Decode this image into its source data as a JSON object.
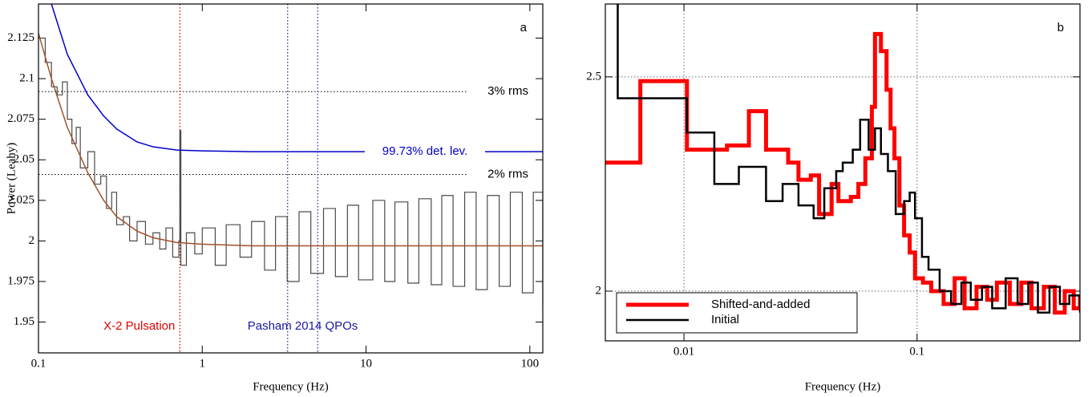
{
  "chart_data": [
    {
      "type": "line",
      "panel_label": "a",
      "xlabel": "Frequency (Hz)",
      "ylabel": "Power (Leahy)",
      "xscale": "log",
      "xlim": [
        0.1,
        120
      ],
      "ylim": [
        1.931,
        2.146
      ],
      "xticks": [
        0.1,
        1,
        10,
        100
      ],
      "yticks": [
        1.95,
        1.975,
        2,
        2.025,
        2.05,
        2.075,
        2.1,
        2.125
      ],
      "series": [
        {
          "color": "#4a4a4a",
          "width": 1.2,
          "drawstyle": "steps",
          "x": [
            0.1,
            0.11,
            0.12,
            0.13,
            0.14,
            0.15,
            0.16,
            0.17,
            0.18,
            0.2,
            0.22,
            0.24,
            0.26,
            0.28,
            0.3,
            0.33,
            0.36,
            0.4,
            0.45,
            0.5,
            0.55,
            0.6,
            0.66,
            0.72,
            0.73,
            0.74,
            0.8,
            0.9,
            1.0,
            1.2,
            1.4,
            1.7,
            2,
            2.4,
            2.8,
            3.3,
            3.9,
            4.6,
            5.5,
            6.5,
            7.7,
            9,
            11,
            13,
            15,
            18,
            21,
            25,
            29,
            34,
            40,
            47,
            55,
            65,
            76,
            90,
            105,
            120
          ],
          "values": [
            2.125,
            2.11,
            2.095,
            2.09,
            2.098,
            2.075,
            2.06,
            2.07,
            2.045,
            2.055,
            2.035,
            2.04,
            2.02,
            2.03,
            2.01,
            2.015,
            2.0,
            2.012,
            1.998,
            2.005,
            1.995,
            2.008,
            1.99,
            2.0,
            2.068,
            1.985,
            2.005,
            1.992,
            2.008,
            1.985,
            2.01,
            1.99,
            2.012,
            1.982,
            2.015,
            1.975,
            2.018,
            1.98,
            2.02,
            1.978,
            2.022,
            1.976,
            2.025,
            1.975,
            2.024,
            1.974,
            2.026,
            1.973,
            2.028,
            1.972,
            2.03,
            1.97,
            2.028,
            1.972,
            2.03,
            1.968,
            2.03,
            1.96
          ]
        },
        {
          "color": "#a0522d",
          "width": 1.5,
          "x": [
            0.1,
            0.12,
            0.15,
            0.2,
            0.25,
            0.3,
            0.4,
            0.5,
            0.7,
            1,
            2,
            5,
            20,
            120
          ],
          "values": [
            2.128,
            2.1,
            2.07,
            2.042,
            2.025,
            2.015,
            2.006,
            2.002,
            1.999,
            1.998,
            1.997,
            1.997,
            1.997,
            1.997
          ]
        },
        {
          "name": "99.73% det. lev.",
          "color": "#0000cc",
          "width": 1.5,
          "x": [
            0.12,
            0.15,
            0.2,
            0.25,
            0.3,
            0.4,
            0.5,
            0.7,
            1,
            2,
            5,
            20,
            120
          ],
          "values": [
            2.146,
            2.115,
            2.09,
            2.077,
            2.069,
            2.061,
            2.058,
            2.056,
            2.0555,
            2.055,
            2.055,
            2.055,
            2.055
          ]
        }
      ],
      "hlines": [
        {
          "value": 2.092,
          "label": "3% rms"
        },
        {
          "value": 2.041,
          "label": "2% rms"
        }
      ],
      "vlines": [
        {
          "value": 0.73,
          "color": "#e00000",
          "label": "X-2 Pulsation"
        },
        {
          "value": 3.32,
          "color": "#333399"
        },
        {
          "value": 5.07,
          "color": "#333399"
        }
      ],
      "vline_note": {
        "text": "Pasham 2014 QPOs",
        "color": "#1a1aa0"
      }
    },
    {
      "type": "line",
      "panel_label": "b",
      "xlabel": "Frequency (Hz)",
      "xscale": "log",
      "xlim": [
        0.0046,
        0.5
      ],
      "ylim": [
        1.884,
        2.67
      ],
      "xticks": [
        0.01,
        0.1
      ],
      "yticks": [
        2,
        2.5
      ],
      "grid": true,
      "legend": "lower left",
      "series": [
        {
          "name": "Shifted-and-added",
          "color": "#ff0000",
          "width": 5,
          "drawstyle": "steps",
          "x": [
            0.0046,
            0.0065,
            0.0103,
            0.0153,
            0.019,
            0.0225,
            0.028,
            0.031,
            0.035,
            0.038,
            0.043,
            0.046,
            0.052,
            0.056,
            0.06,
            0.064,
            0.066,
            0.07,
            0.074,
            0.077,
            0.08,
            0.084,
            0.088,
            0.093,
            0.098,
            0.106,
            0.115,
            0.13,
            0.145,
            0.16,
            0.18,
            0.2,
            0.22,
            0.25,
            0.28,
            0.31,
            0.35,
            0.39,
            0.43,
            0.47,
            0.5
          ],
          "values": [
            2.3,
            2.49,
            2.33,
            2.34,
            2.42,
            2.33,
            2.3,
            2.26,
            2.27,
            2.18,
            2.25,
            2.21,
            2.22,
            2.25,
            2.31,
            2.43,
            2.6,
            2.56,
            2.47,
            2.38,
            2.31,
            2.2,
            2.13,
            2.09,
            2.03,
            2.02,
            2.0,
            1.97,
            2.03,
            1.96,
            2.01,
            1.98,
            2.02,
            1.97,
            2.02,
            1.96,
            2.01,
            1.95,
            2.0,
            1.96,
            1.99
          ]
        },
        {
          "name": "Initial",
          "color": "#000000",
          "width": 2.5,
          "drawstyle": "steps",
          "x": [
            0.0047,
            0.0052,
            0.0103,
            0.0135,
            0.0172,
            0.0225,
            0.0265,
            0.031,
            0.036,
            0.04,
            0.045,
            0.048,
            0.053,
            0.057,
            0.062,
            0.066,
            0.07,
            0.075,
            0.081,
            0.088,
            0.093,
            0.098,
            0.105,
            0.112,
            0.125,
            0.14,
            0.155,
            0.17,
            0.19,
            0.21,
            0.24,
            0.27,
            0.3,
            0.33,
            0.37,
            0.41,
            0.45,
            0.5
          ],
          "values": [
            2.8,
            2.45,
            2.37,
            2.25,
            2.29,
            2.21,
            2.25,
            2.2,
            2.17,
            2.24,
            2.28,
            2.3,
            2.33,
            2.4,
            2.33,
            2.38,
            2.32,
            2.28,
            2.18,
            2.21,
            2.23,
            2.17,
            2.08,
            2.05,
            2.0,
            1.97,
            2.02,
            1.98,
            2.01,
            1.96,
            2.03,
            1.97,
            2.02,
            1.95,
            2.01,
            1.97,
            1.99,
            1.95
          ]
        }
      ]
    }
  ]
}
